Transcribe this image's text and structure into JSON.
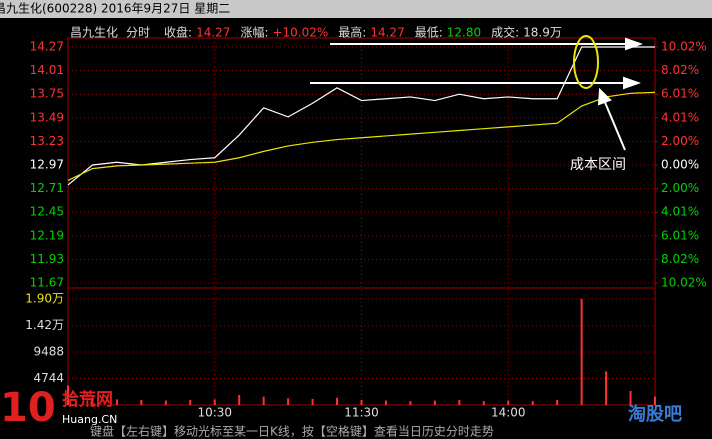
{
  "header": {
    "title": "昌九生化(600228) 2016年9月27日 星期二",
    "name": "昌九生化",
    "mode": "分时",
    "fields": [
      {
        "label": "收盘:",
        "value": "14.27"
      },
      {
        "label": "涨幅:",
        "value": "+10.02%"
      },
      {
        "label": "最高:",
        "value": "14.27"
      },
      {
        "label": "最低:",
        "value": "12.80"
      },
      {
        "label": "成交:",
        "value": "18.9万"
      }
    ]
  },
  "annotation": "成本区间",
  "watermarks": {
    "left_number": "10",
    "left_name": "拾荒网",
    "left_url": "Huang.CN",
    "right_name": "淘股吧"
  },
  "status": "键盘【左右键】移动光标至某一日K线，按【空格键】查看当日历史分时走势",
  "chart_data": [
    {
      "type": "line",
      "x": [
        0,
        10,
        20,
        30,
        40,
        50,
        60,
        70,
        80,
        90,
        100,
        110,
        120,
        130,
        140,
        150,
        160,
        170,
        180,
        190,
        200,
        210,
        220,
        230,
        240
      ],
      "xlim": [
        0,
        240
      ],
      "xticks": [
        {
          "value": 60,
          "label": "10:30"
        },
        {
          "value": 120,
          "label": "11:30"
        },
        {
          "value": 180,
          "label": "14:00"
        }
      ],
      "series": [
        {
          "name": "价格",
          "color": "#ffffff",
          "values": [
            12.75,
            12.97,
            13.0,
            12.97,
            13.0,
            13.03,
            13.05,
            13.3,
            13.6,
            13.5,
            13.65,
            13.82,
            13.68,
            13.7,
            13.72,
            13.68,
            13.75,
            13.7,
            13.72,
            13.7,
            13.7,
            14.27,
            14.27,
            14.27,
            14.27
          ]
        },
        {
          "name": "均价",
          "color": "#e6e600",
          "values": [
            12.8,
            12.93,
            12.96,
            12.97,
            12.98,
            12.99,
            13.0,
            13.05,
            13.12,
            13.18,
            13.22,
            13.25,
            13.27,
            13.29,
            13.31,
            13.33,
            13.35,
            13.37,
            13.39,
            13.41,
            13.43,
            13.62,
            13.72,
            13.76,
            13.77
          ]
        }
      ],
      "ylim": [
        11.67,
        14.27
      ],
      "yticks": [
        14.27,
        14.01,
        13.75,
        13.49,
        13.23,
        12.97,
        12.71,
        12.45,
        12.19,
        11.93,
        11.67
      ],
      "y2lim": [
        -10.02,
        10.02
      ],
      "y2ticks": [
        {
          "value": 10.02,
          "label": "10.02%"
        },
        {
          "value": 8.02,
          "label": "8.02%"
        },
        {
          "value": 6.01,
          "label": "6.01%"
        },
        {
          "value": 4.01,
          "label": "4.01%"
        },
        {
          "value": 2.0,
          "label": "2.00%"
        },
        {
          "value": 0,
          "label": "0.00%"
        },
        {
          "value": -2.0,
          "label": "2.00%"
        },
        {
          "value": -4.01,
          "label": "4.01%"
        },
        {
          "value": -6.01,
          "label": "6.01%"
        },
        {
          "value": -8.02,
          "label": "8.02%"
        },
        {
          "value": -10.02,
          "label": "10.02%"
        }
      ],
      "up_color": "#ff3232",
      "down_color": "#00d200",
      "flat_color": "#ffffff",
      "grid": true
    },
    {
      "type": "bar",
      "x": [
        0,
        10,
        20,
        30,
        40,
        50,
        60,
        70,
        80,
        90,
        100,
        110,
        120,
        130,
        140,
        150,
        160,
        170,
        180,
        190,
        200,
        210,
        220,
        230,
        240
      ],
      "values": [
        3500,
        1400,
        1000,
        900,
        800,
        900,
        1000,
        1800,
        1500,
        1200,
        1100,
        1300,
        900,
        800,
        700,
        800,
        900,
        700,
        800,
        700,
        900,
        19000,
        6000,
        2500,
        1500
      ],
      "color": "#ff3232",
      "ylim": [
        0,
        20600
      ],
      "yticks": [
        {
          "value": 19000,
          "label": "1.90万"
        },
        {
          "value": 14200,
          "label": "1.42万"
        },
        9488,
        4744
      ],
      "grid": true
    }
  ]
}
